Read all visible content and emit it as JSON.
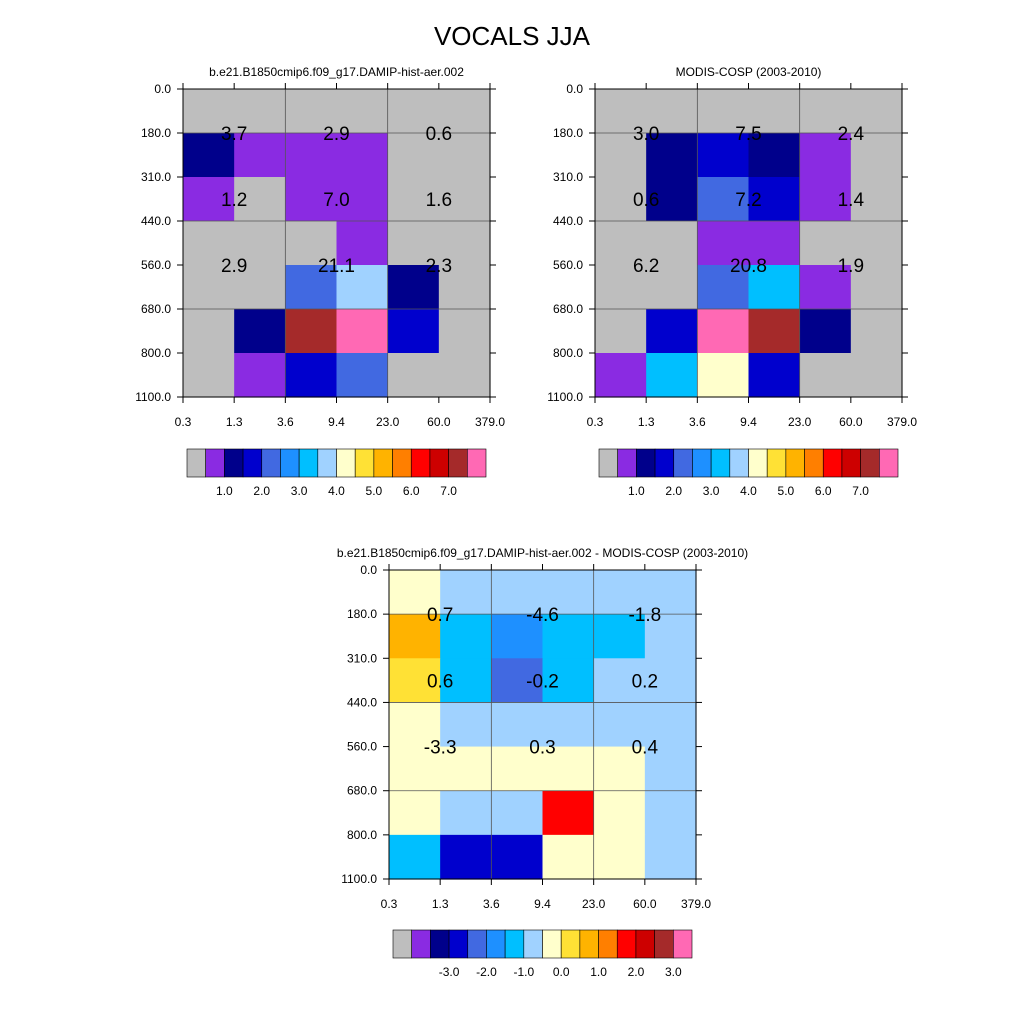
{
  "title": "VOCALS JJA",
  "palette": {
    "missing": "#BEBEBE",
    "colors": [
      "#8A2BE2",
      "#00008B",
      "#0000CD",
      "#4169E1",
      "#1E90FF",
      "#00BFFF",
      "#A0D2FF",
      "#FFFFCC",
      "#FFE135",
      "#FFB300",
      "#FF7F00",
      "#FF0000",
      "#CD0000",
      "#A52A2A",
      "#FF69B4"
    ]
  },
  "chart_data": [
    {
      "type": "heatmap",
      "title": "b.e21.B1850cmip6.f09_g17.DAMIP-hist-aer.002",
      "x_ticks": [
        "0.3",
        "1.3",
        "3.6",
        "9.4",
        "23.0",
        "60.0",
        "379.0"
      ],
      "y_ticks": [
        "0.0",
        "180.0",
        "310.0",
        "440.0",
        "560.0",
        "680.0",
        "800.0",
        "1100.0"
      ],
      "cells": [
        [
          -1,
          -1,
          -1,
          -1,
          -1,
          -1
        ],
        [
          1,
          0,
          0,
          0,
          -1,
          -1
        ],
        [
          0,
          -1,
          0,
          0,
          -1,
          -1
        ],
        [
          -1,
          -1,
          -1,
          0,
          -1,
          -1
        ],
        [
          -1,
          -1,
          3,
          6,
          1,
          -1
        ],
        [
          -1,
          1,
          13,
          14,
          2,
          -1
        ],
        [
          -1,
          0,
          2,
          3,
          -1,
          -1
        ]
      ],
      "block_labels": [
        {
          "col": 1,
          "row": 2,
          "text": "3.7"
        },
        {
          "col": 3,
          "row": 2,
          "text": "2.9"
        },
        {
          "col": 5,
          "row": 2,
          "text": "0.6"
        },
        {
          "col": 1,
          "row": 5,
          "text": "1.2"
        },
        {
          "col": 3,
          "row": 5,
          "text": "7.0"
        },
        {
          "col": 5,
          "row": 5,
          "text": "1.6"
        },
        {
          "col": 1,
          "row": 8,
          "text": "2.9"
        },
        {
          "col": 3,
          "row": 8,
          "text": "21.1"
        },
        {
          "col": 5,
          "row": 8,
          "text": "2.3"
        }
      ],
      "colorbar": {
        "labels": [
          "1.0",
          "2.0",
          "3.0",
          "4.0",
          "5.0",
          "6.0",
          "7.0"
        ],
        "boxes": [
          "missing",
          0,
          1,
          2,
          3,
          4,
          5,
          6,
          7,
          8,
          9,
          10,
          11,
          12,
          13,
          14
        ],
        "label_boundaries": [
          2,
          4,
          6,
          8,
          10,
          12,
          14
        ]
      }
    },
    {
      "type": "heatmap",
      "title": "MODIS-COSP (2003-2010)",
      "x_ticks": [
        "0.3",
        "1.3",
        "3.6",
        "9.4",
        "23.0",
        "60.0",
        "379.0"
      ],
      "y_ticks": [
        "0.0",
        "180.0",
        "310.0",
        "440.0",
        "560.0",
        "680.0",
        "800.0",
        "1100.0"
      ],
      "cells": [
        [
          -1,
          -1,
          -1,
          -1,
          -1,
          -1
        ],
        [
          -1,
          1,
          2,
          1,
          0,
          -1
        ],
        [
          -1,
          1,
          3,
          2,
          0,
          -1
        ],
        [
          -1,
          -1,
          0,
          0,
          -1,
          -1
        ],
        [
          -1,
          -1,
          3,
          5,
          0,
          -1
        ],
        [
          -1,
          2,
          14,
          13,
          1,
          -1
        ],
        [
          0,
          5,
          7,
          2,
          -1,
          -1
        ]
      ],
      "block_labels": [
        {
          "col": 1,
          "row": 2,
          "text": "3.0"
        },
        {
          "col": 3,
          "row": 2,
          "text": "7.5"
        },
        {
          "col": 5,
          "row": 2,
          "text": "2.4"
        },
        {
          "col": 1,
          "row": 5,
          "text": "0.6"
        },
        {
          "col": 3,
          "row": 5,
          "text": "7.2"
        },
        {
          "col": 5,
          "row": 5,
          "text": "1.4"
        },
        {
          "col": 1,
          "row": 8,
          "text": "6.2"
        },
        {
          "col": 3,
          "row": 8,
          "text": "20.8"
        },
        {
          "col": 5,
          "row": 8,
          "text": "1.9"
        }
      ],
      "colorbar": {
        "labels": [
          "1.0",
          "2.0",
          "3.0",
          "4.0",
          "5.0",
          "6.0",
          "7.0"
        ],
        "boxes": [
          "missing",
          0,
          1,
          2,
          3,
          4,
          5,
          6,
          7,
          8,
          9,
          10,
          11,
          12,
          13,
          14
        ],
        "label_boundaries": [
          2,
          4,
          6,
          8,
          10,
          12,
          14
        ]
      }
    },
    {
      "type": "heatmap",
      "title": "b.e21.B1850cmip6.f09_g17.DAMIP-hist-aer.002 - MODIS-COSP (2003-2010)",
      "x_ticks": [
        "0.3",
        "1.3",
        "3.6",
        "9.4",
        "23.0",
        "60.0",
        "379.0"
      ],
      "y_ticks": [
        "0.0",
        "180.0",
        "310.0",
        "440.0",
        "560.0",
        "680.0",
        "800.0",
        "1100.0"
      ],
      "cells": [
        [
          7,
          6,
          6,
          6,
          6,
          6
        ],
        [
          9,
          5,
          4,
          5,
          5,
          6
        ],
        [
          8,
          5,
          3,
          5,
          6,
          6
        ],
        [
          7,
          6,
          6,
          6,
          6,
          6
        ],
        [
          7,
          7,
          7,
          7,
          7,
          6
        ],
        [
          7,
          6,
          6,
          11,
          7,
          6
        ],
        [
          5,
          2,
          2,
          7,
          7,
          6
        ]
      ],
      "block_labels": [
        {
          "col": 1,
          "row": 2,
          "text": "0.7"
        },
        {
          "col": 3,
          "row": 2,
          "text": "-4.6"
        },
        {
          "col": 5,
          "row": 2,
          "text": "-1.8"
        },
        {
          "col": 1,
          "row": 5,
          "text": "0.6"
        },
        {
          "col": 3,
          "row": 5,
          "text": "-0.2"
        },
        {
          "col": 5,
          "row": 5,
          "text": "0.2"
        },
        {
          "col": 1,
          "row": 8,
          "text": "-3.3"
        },
        {
          "col": 3,
          "row": 8,
          "text": "0.3"
        },
        {
          "col": 5,
          "row": 8,
          "text": "0.4"
        }
      ],
      "colorbar": {
        "labels": [
          "-3.0",
          "-2.0",
          "-1.0",
          "0.0",
          "1.0",
          "2.0",
          "3.0"
        ],
        "boxes": [
          "missing",
          0,
          1,
          2,
          3,
          4,
          5,
          6,
          7,
          8,
          9,
          10,
          11,
          12,
          13,
          14
        ],
        "label_boundaries": [
          3,
          5,
          7,
          9,
          11,
          13,
          15
        ]
      }
    }
  ]
}
